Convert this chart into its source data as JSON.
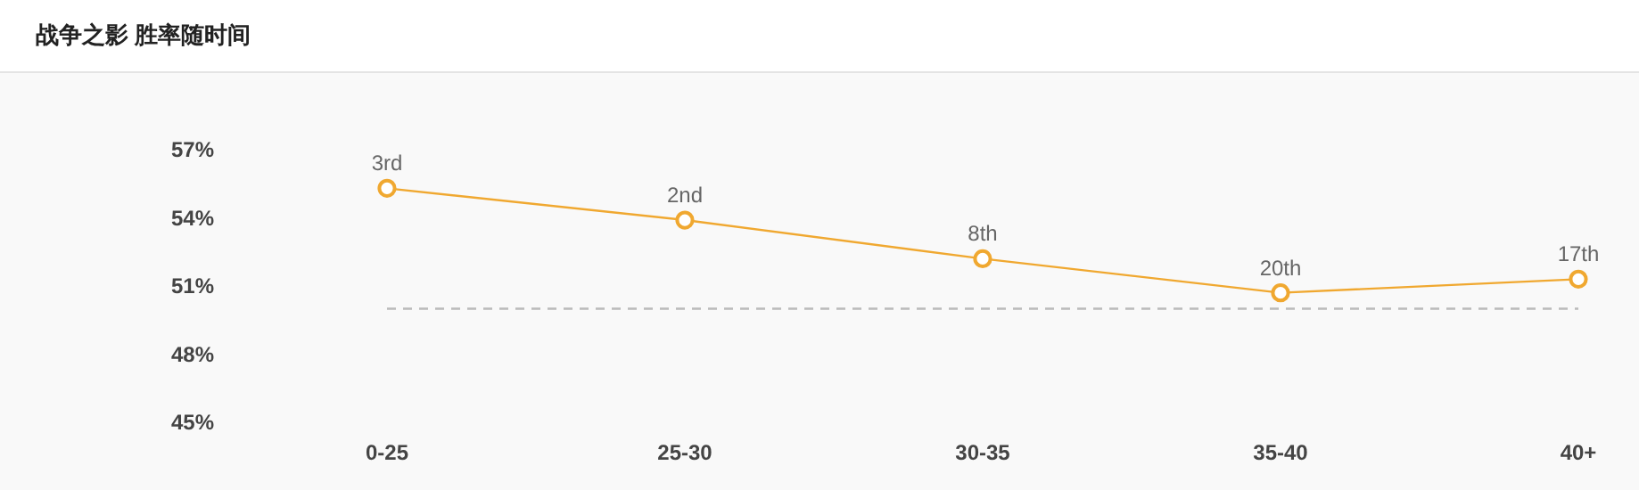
{
  "chart_data": {
    "type": "line",
    "title": "战争之影 胜率随时间",
    "categories": [
      "0-25",
      "25-30",
      "30-35",
      "35-40",
      "40+"
    ],
    "series": [
      {
        "color": "#f0a830",
        "values": [
          55.3,
          53.9,
          52.2,
          50.7,
          51.3
        ]
      }
    ],
    "annotations": [
      {
        "text": "3rd",
        "x": "0-25",
        "y": 55.3
      },
      {
        "text": "2nd",
        "x": "25-30",
        "y": 53.9
      },
      {
        "text": "8th",
        "x": "30-35",
        "y": 52.2
      },
      {
        "text": "20th",
        "x": "35-40",
        "y": 50.7
      },
      {
        "text": "17th",
        "x": "40+",
        "y": 51.3
      }
    ],
    "ylim": [
      45,
      57
    ],
    "yticks": [
      {
        "value": 45,
        "label": "45%"
      },
      {
        "value": 48,
        "label": "48%"
      },
      {
        "value": 51,
        "label": "51%"
      },
      {
        "value": 54,
        "label": "54%"
      },
      {
        "value": 57,
        "label": "57%"
      }
    ],
    "ref_lines": [
      {
        "axis": "y",
        "value": 50,
        "color": "#bbbbbb",
        "line_style": "dashed"
      }
    ],
    "marker": "circle",
    "line_style": "solid",
    "grid": false
  }
}
